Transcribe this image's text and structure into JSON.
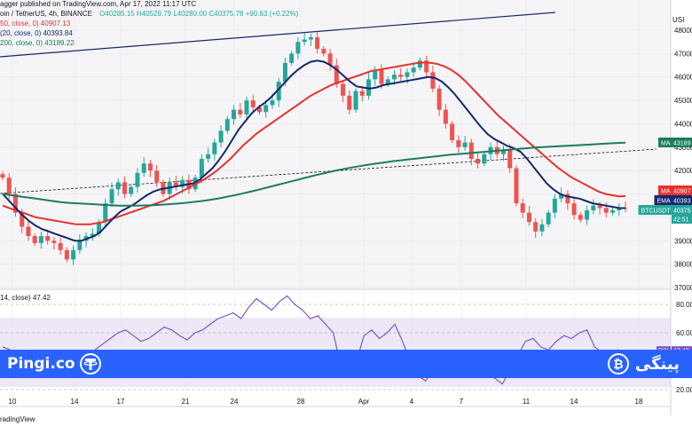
{
  "header": {
    "line1": "agger published on TradingView.com, Apr 17, 2022 11:17 UTC",
    "line2_prefix": "oin / TetherUS, 4h, BINANCE",
    "line2_ohlc": "O40285.15  H40529.79  L40280.00  C40375.78  +90.63 (+0.22%)",
    "line3": "50, close, 0)  40907.13",
    "line4": "(20, close, 0)  40393.84",
    "line5": "200, close, 0)  43189.22",
    "currency": "USI"
  },
  "price_axis": {
    "ticks": [
      "48000.00",
      "47000.00",
      "46000.00",
      "45000.00",
      "44000.00",
      "43000.00",
      "42000.00",
      "41000.00",
      "40000.00",
      "39000.00",
      "38000.00",
      "37000.00"
    ]
  },
  "price_tags": [
    {
      "label": "MA",
      "value": "43189",
      "color": "#1e7b5e"
    },
    {
      "label": "MA",
      "value": "40907",
      "color": "#e5322d"
    },
    {
      "label": "EMA",
      "value": "40393",
      "color": "#14286e"
    },
    {
      "label": "BTCUSDT",
      "value": "40375",
      "sub": "42:51",
      "color": "#26a69a"
    }
  ],
  "rsi": {
    "label": "14, close)  47.42",
    "tag": "47.42",
    "tag_label": "RSI",
    "ticks": [
      "80.00",
      "60.00",
      "40.00",
      "20.00"
    ]
  },
  "time_axis": {
    "labels": [
      "10",
      "14",
      "17",
      "21",
      "24",
      "28",
      "Apr",
      "4",
      "7",
      "11",
      "14",
      "18"
    ]
  },
  "brand_left": "Pingi.co",
  "brand_right": "پینگی",
  "footer": "radingView",
  "colors": {
    "up": "#26a69a",
    "down": "#ef5350",
    "ma50": "#e5322d",
    "ema20": "#14286e",
    "ma200": "#1e7b5e",
    "rsi": "#7e57c2",
    "banner": "#2962ff"
  },
  "chart_data": {
    "type": "candlestick",
    "symbol": "BTCUSDT",
    "interval": "4h",
    "x_labels": [
      "10",
      "14",
      "17",
      "21",
      "24",
      "28",
      "Apr",
      "4",
      "7",
      "11",
      "14",
      "18"
    ],
    "ylim": [
      37000,
      48500
    ],
    "close_series_approx": [
      41700,
      41000,
      40200,
      39600,
      39200,
      38900,
      39200,
      39000,
      38900,
      38600,
      38200,
      38600,
      39000,
      39200,
      39300,
      39800,
      40600,
      41200,
      41500,
      41000,
      41300,
      41900,
      42300,
      42000,
      41500,
      41000,
      41500,
      41300,
      41600,
      41200,
      41700,
      42500,
      42700,
      43200,
      43700,
      44200,
      44600,
      44400,
      45000,
      44700,
      44500,
      44800,
      45000,
      45800,
      46600,
      47000,
      47500,
      47600,
      47700,
      47200,
      47000,
      46500,
      45700,
      45200,
      44600,
      45400,
      45200,
      45900,
      46300,
      45700,
      45900,
      46100,
      46000,
      46200,
      46400,
      46700,
      46200,
      45500,
      44600,
      44000,
      43300,
      43000,
      43200,
      42500,
      42300,
      42700,
      43000,
      42700,
      42900,
      42100,
      40600,
      40200,
      39800,
      39400,
      39700,
      40200,
      40800,
      41000,
      40600,
      40100,
      39900,
      40300,
      40500,
      40400,
      40200,
      40300,
      40400,
      40376
    ],
    "series": [
      {
        "name": "MA 50",
        "values": [
          40500,
          40400,
          40300,
          40200,
          40100,
          40000,
          39950,
          39900,
          39850,
          39800,
          39750,
          39700,
          39700,
          39700,
          39750,
          39800,
          39900,
          40000,
          40100,
          40200,
          40300,
          40400,
          40500,
          40600,
          40700,
          40850,
          41000,
          41150,
          41300,
          41450,
          41600,
          41800,
          42000,
          42250,
          42500,
          42800,
          43100,
          43350,
          43600,
          43800,
          44000,
          44200,
          44400,
          44600,
          44800,
          45000,
          45200,
          45350,
          45500,
          45650,
          45750,
          45850,
          45950,
          46050,
          46150,
          46250,
          46300,
          46350,
          46400,
          46450,
          46500,
          46550,
          46600,
          46620,
          46600,
          46550,
          46450,
          46300,
          46100,
          45850,
          45550,
          45250,
          44950,
          44650,
          44350,
          44100,
          43850,
          43600,
          43350,
          43100,
          42850,
          42600,
          42350,
          42100,
          41900,
          41700,
          41550,
          41400,
          41250,
          41100,
          41000,
          40950,
          40900,
          40907
        ]
      },
      {
        "name": "EMA 20",
        "values": [
          41000,
          40700,
          40400,
          40100,
          39850,
          39650,
          39500,
          39400,
          39300,
          39200,
          39100,
          39000,
          39000,
          39100,
          39200,
          39400,
          39700,
          40000,
          40250,
          40400,
          40550,
          40750,
          40950,
          41100,
          41200,
          41250,
          41300,
          41350,
          41400,
          41450,
          41600,
          41850,
          42100,
          42450,
          42850,
          43300,
          43750,
          44100,
          44450,
          44700,
          44900,
          45150,
          45450,
          45750,
          46050,
          46300,
          46500,
          46650,
          46700,
          46650,
          46500,
          46300,
          46050,
          45800,
          45600,
          45550,
          45500,
          45550,
          45650,
          45700,
          45750,
          45800,
          45850,
          45900,
          45950,
          46000,
          45950,
          45800,
          45550,
          45250,
          44900,
          44550,
          44200,
          43850,
          43550,
          43350,
          43200,
          43050,
          42950,
          42800,
          42500,
          42150,
          41800,
          41450,
          41200,
          41000,
          40900,
          40850,
          40800,
          40700,
          40600,
          40550,
          40500,
          40450,
          40400,
          40393
        ]
      },
      {
        "name": "MA 200",
        "values": [
          41000,
          40950,
          40900,
          40850,
          40800,
          40750,
          40700,
          40650,
          40620,
          40600,
          40580,
          40560,
          40540,
          40520,
          40500,
          40500,
          40500,
          40510,
          40520,
          40540,
          40560,
          40590,
          40620,
          40660,
          40700,
          40750,
          40810,
          40880,
          40950,
          41030,
          41110,
          41200,
          41290,
          41380,
          41470,
          41560,
          41650,
          41740,
          41830,
          41910,
          41990,
          42060,
          42130,
          42190,
          42250,
          42300,
          42350,
          42400,
          42440,
          42480,
          42520,
          42560,
          42600,
          42640,
          42680,
          42710,
          42740,
          42770,
          42800,
          42830,
          42860,
          42890,
          42920,
          42950,
          42980,
          43000,
          43020,
          43040,
          43060,
          43080,
          43100,
          43120,
          43140,
          43160,
          43180,
          43189
        ]
      },
      {
        "name": "RSI 14",
        "values": [
          50,
          48,
          42,
          38,
          36,
          40,
          44,
          42,
          40,
          38,
          36,
          42,
          48,
          52,
          56,
          60,
          62,
          58,
          54,
          56,
          60,
          64,
          62,
          58,
          55,
          60,
          62,
          66,
          70,
          72,
          74,
          70,
          78,
          84,
          80,
          76,
          82,
          86,
          80,
          76,
          70,
          72,
          66,
          60,
          36,
          30,
          40,
          58,
          62,
          56,
          60,
          66,
          54,
          40,
          30,
          26,
          34,
          40,
          46,
          44,
          40,
          38,
          36,
          30,
          28,
          24,
          34,
          44,
          54,
          56,
          50,
          48,
          54,
          58,
          56,
          60,
          62,
          50,
          46,
          44,
          48,
          47
        ]
      }
    ],
    "price_lines_labels": [
      "MA 43189",
      "MA 40907",
      "EMA 40393",
      "BTCUSDT 40375"
    ]
  }
}
